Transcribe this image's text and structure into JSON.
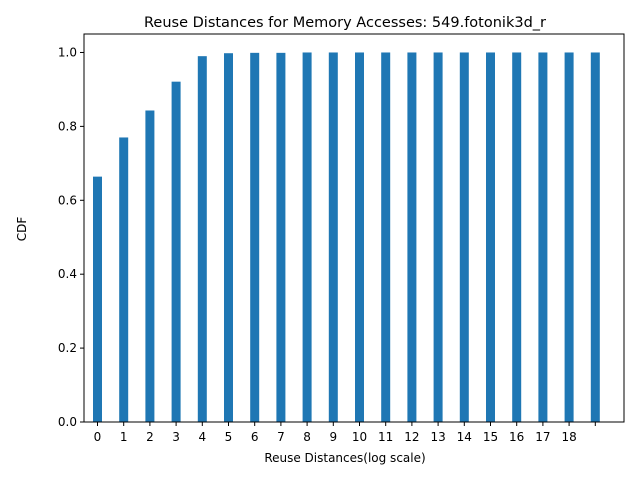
{
  "chart_data": {
    "type": "bar",
    "title": "Reuse Distances for Memory Accesses: 549.fotonik3d_r",
    "xlabel": "Reuse Distances(log scale)",
    "ylabel": "CDF",
    "categories": [
      "0",
      "1",
      "2",
      "3",
      "4",
      "5",
      "6",
      "7",
      "8",
      "9",
      "10",
      "11",
      "12",
      "13",
      "14",
      "15",
      "16",
      "17",
      "18",
      ""
    ],
    "values": [
      0.664,
      0.77,
      0.843,
      0.921,
      0.99,
      0.998,
      0.999,
      0.999,
      1.0,
      1.0,
      1.0,
      1.0,
      1.0,
      1.0,
      1.0,
      1.0,
      1.0,
      1.0,
      1.0,
      1.0
    ],
    "ylim": [
      0,
      1.05
    ],
    "yticks": [
      "0.0",
      "0.2",
      "0.4",
      "0.6",
      "0.8",
      "1.0"
    ],
    "bar_color": "#1f77b4",
    "grid": false,
    "legend": "none"
  }
}
